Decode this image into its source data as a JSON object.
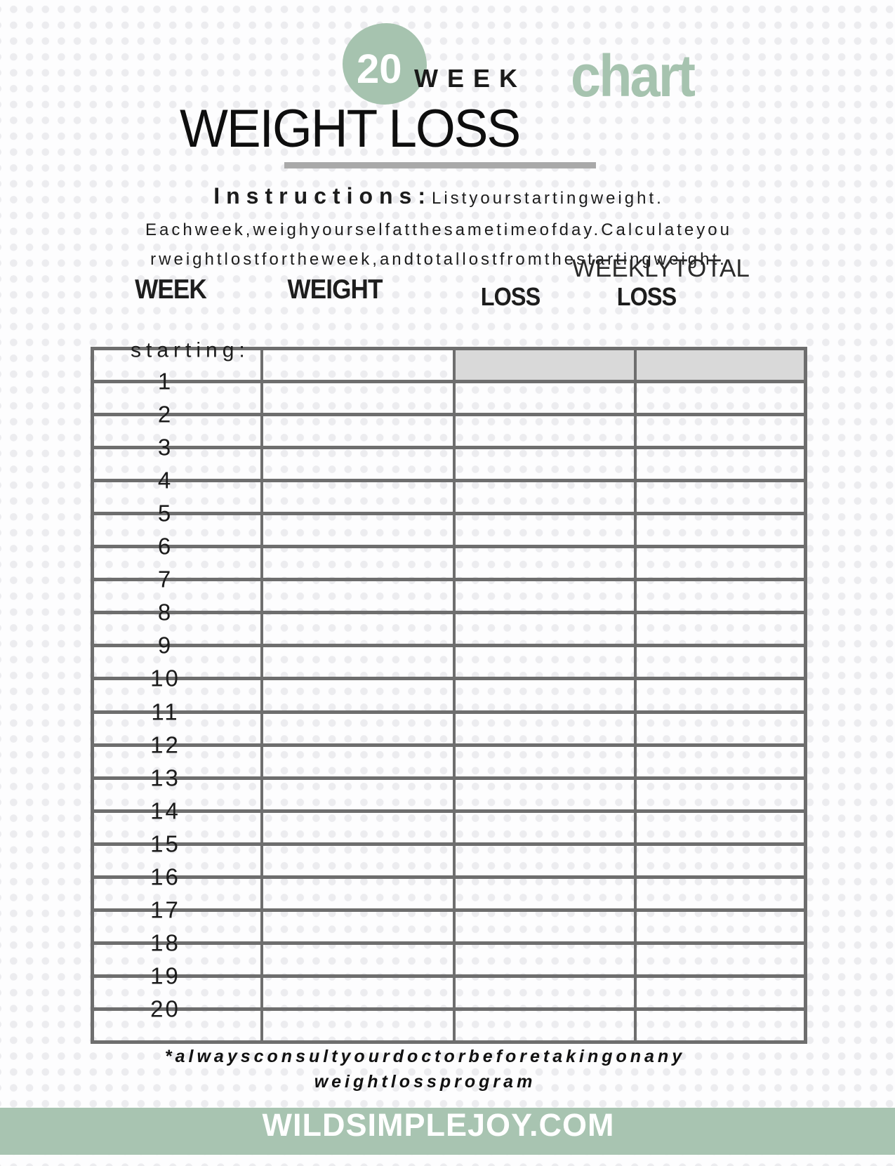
{
  "colors": {
    "accent_green": "#a6c3af",
    "footer_green": "#a8c4b1",
    "underline_gray": "#a9a9a9",
    "table_border": "#6e6e6e",
    "shaded_cell": "#d9d9d9",
    "dot_pattern": "#ececef"
  },
  "header": {
    "badge_number": "20",
    "week_label": "WEEK",
    "chart_label": "chart",
    "title": "WEIGHT LOSS"
  },
  "instructions": {
    "heading": "Instructions:",
    "line1": "Listyourstartingweight.",
    "line2": "Eachweek,weighyourselfatthesametimeofday.Calculateyou",
    "line3": "rweightlostfortheweek,andtotallostfromthestartingweight."
  },
  "table": {
    "super_header": "WEEKLYTOTAL",
    "columns": [
      "WEEK",
      "WEIGHT",
      "LOSS",
      "LOSS"
    ],
    "rows": [
      "starting:",
      "1",
      "2",
      "3",
      "4",
      "5",
      "6",
      "7",
      "8",
      "9",
      "10",
      "11",
      "12",
      "13",
      "14",
      "15",
      "16",
      "17",
      "18",
      "19",
      "20"
    ]
  },
  "disclaimer": {
    "line1": "*alwaysconsultyourdoctorbeforetakingonany",
    "line2": "weightlossprogram"
  },
  "footer": {
    "text": "WILDSIMPLEJOY.COM"
  }
}
